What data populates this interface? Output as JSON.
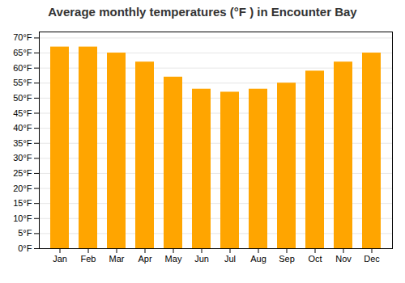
{
  "chart_data": {
    "type": "bar",
    "title": "Average monthly temperatures (°F ) in Encounter Bay",
    "categories": [
      "Jan",
      "Feb",
      "Mar",
      "Apr",
      "May",
      "Jun",
      "Jul",
      "Aug",
      "Sep",
      "Oct",
      "Nov",
      "Dec"
    ],
    "values": [
      67,
      67,
      65,
      62,
      57,
      53,
      52,
      53,
      55,
      59,
      62,
      65
    ],
    "color": "#FFA500",
    "ylim": [
      0,
      72
    ],
    "yticks": [
      {
        "value": 0,
        "label": "0°F"
      },
      {
        "value": 5,
        "label": "5°F"
      },
      {
        "value": 10,
        "label": "10°F"
      },
      {
        "value": 15,
        "label": "15°F"
      },
      {
        "value": 20,
        "label": "20°F"
      },
      {
        "value": 25,
        "label": "25°F"
      },
      {
        "value": 30,
        "label": "30°F"
      },
      {
        "value": 35,
        "label": "35°F"
      },
      {
        "value": 40,
        "label": "40°F"
      },
      {
        "value": 45,
        "label": "45°F"
      },
      {
        "value": 50,
        "label": "50°F"
      },
      {
        "value": 55,
        "label": "55°F"
      },
      {
        "value": 60,
        "label": "60°F"
      },
      {
        "value": 65,
        "label": "65°F"
      },
      {
        "value": 70,
        "label": "70°F"
      }
    ],
    "grid": true
  }
}
